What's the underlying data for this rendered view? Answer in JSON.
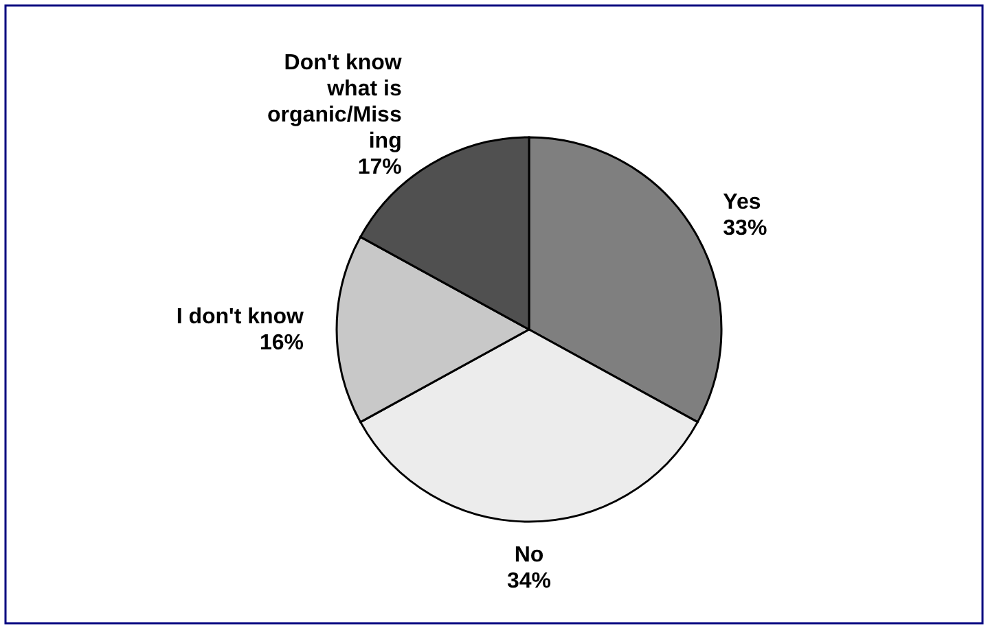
{
  "chart_data": {
    "type": "pie",
    "categories": [
      "Yes",
      "No",
      "I don't know",
      "Don't know what is organic/Missing"
    ],
    "values": [
      33,
      34,
      16,
      17
    ],
    "value_labels": [
      "33%",
      "34%",
      "16%",
      "17%"
    ],
    "colors": [
      "#7f7f7f",
      "#ececec",
      "#c8c8c8",
      "#505050"
    ]
  }
}
